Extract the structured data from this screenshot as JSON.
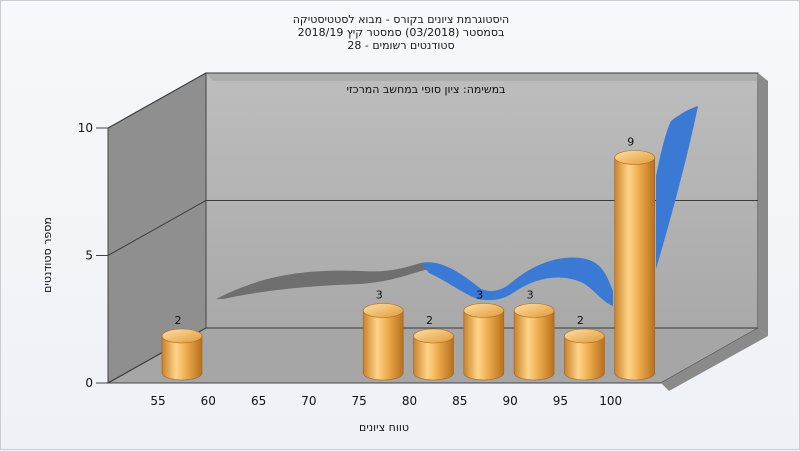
{
  "chart_data": {
    "type": "bar",
    "title_lines": [
      "היסטוגרמת ציונים בקורס - מבוא לסטטיסטיקה",
      "בסמסטר  (03/2018)  סמסטר קיץ 2018/19",
      "סטודנטים רשומים - 28"
    ],
    "subtitle": "במשימה: ציון סופי במחשב המרכזי",
    "xlabel": "טווח ציונים",
    "ylabel": "מספר סטודנטים",
    "x_ticks": [
      "55",
      "60",
      "65",
      "70",
      "75",
      "80",
      "85",
      "90",
      "95",
      "100"
    ],
    "y_ticks": [
      "0",
      "5",
      "10"
    ],
    "ylim": [
      0,
      10
    ],
    "bars": [
      {
        "x": 55,
        "value": 2,
        "label": "2"
      },
      {
        "x": 75,
        "value": 3,
        "label": "3"
      },
      {
        "x": 80,
        "value": 2,
        "label": "2"
      },
      {
        "x": 85,
        "value": 3,
        "label": "3"
      },
      {
        "x": 90,
        "value": 3,
        "label": "3"
      },
      {
        "x": 95,
        "value": 2,
        "label": "2"
      },
      {
        "x": 100,
        "value": 9,
        "label": "9"
      }
    ],
    "colors": {
      "bar": "#e8a33d",
      "curve": "#3a7ad4",
      "curve_shadow": "#707070",
      "wall": "#b5b5b5",
      "side_wall": "#8e8e8e",
      "floor": "#a9a9a9"
    }
  }
}
